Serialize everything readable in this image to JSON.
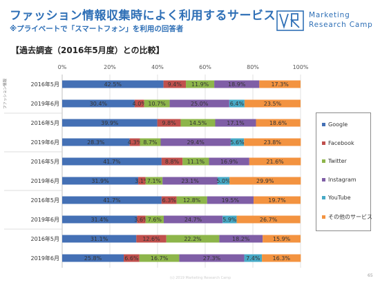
{
  "header": {
    "title": "ファッション情報収集時によく利用するサービス",
    "subtitle": "※プライベートで「スマートフォン」を利用の回答者"
  },
  "brand": {
    "line1": "Marketing",
    "line2": "Research Camp",
    "logo_text": "VR"
  },
  "section_title": "【過去調査（2016年5月度）との比較】",
  "footer": {
    "copyright": "(c) 2019 Marketing Research Camp",
    "page_number": "65"
  },
  "colors": {
    "Google": "#4470b5",
    "Facebook": "#c0504d",
    "Twitter": "#8db54a",
    "Instagram": "#7f5ea6",
    "YouTube": "#46a9c6",
    "その他のサービス": "#f39340"
  },
  "chart_data": {
    "type": "bar",
    "orientation": "horizontal",
    "stacked": "percent",
    "xlim": [
      0,
      100
    ],
    "x_ticks": [
      "0%",
      "20%",
      "40%",
      "60%",
      "80%",
      "100%"
    ],
    "grid": true,
    "legend_position": "right",
    "series_names": [
      "Google",
      "Facebook",
      "Twitter",
      "Instagram",
      "YouTube",
      "その他のサービス"
    ],
    "groups": [
      {
        "label": "ファッション情報",
        "rows": [
          0,
          1
        ]
      },
      {
        "label": "",
        "rows": [
          2,
          3
        ]
      },
      {
        "label": "",
        "rows": [
          4,
          5
        ]
      },
      {
        "label": "",
        "rows": [
          6,
          7
        ]
      },
      {
        "label": "",
        "rows": [
          8,
          9
        ]
      }
    ],
    "rows": [
      {
        "label": "2016年5月",
        "values": [
          42.5,
          9.4,
          11.9,
          18.9,
          0,
          17.3
        ],
        "labels": [
          "42.5%",
          "9.4%",
          "11.9%",
          "18.9%",
          "",
          "17.3%"
        ]
      },
      {
        "label": "2019年6月",
        "values": [
          30.4,
          4.0,
          10.7,
          25.0,
          6.4,
          23.5
        ],
        "labels": [
          "30.4%",
          "4.0%",
          "10.7%",
          "25.0%",
          "6.4%",
          "23.5%"
        ]
      },
      {
        "label": "2016年5月",
        "values": [
          39.9,
          9.8,
          14.5,
          17.1,
          0,
          18.6
        ],
        "labels": [
          "39.9%",
          "9.8%",
          "14.5%",
          "17.1%",
          "",
          "18.6%"
        ]
      },
      {
        "label": "2019年6月",
        "values": [
          28.3,
          4.3,
          8.7,
          29.4,
          5.6,
          23.8
        ],
        "labels": [
          "28.3%",
          "4.3%",
          "8.7%",
          "29.4%",
          "5.6%",
          "23.8%"
        ]
      },
      {
        "label": "2016年5月",
        "values": [
          41.7,
          8.8,
          11.1,
          16.9,
          0,
          21.6
        ],
        "labels": [
          "41.7%",
          "8.8%",
          "11.1%",
          "16.9%",
          "",
          "21.6%"
        ]
      },
      {
        "label": "2019年6月",
        "values": [
          31.9,
          3.1,
          7.1,
          23.1,
          5.0,
          29.9
        ],
        "labels": [
          "31.9%",
          "3.1%",
          "7.1%",
          "23.1%",
          "5.0%",
          "29.9%"
        ]
      },
      {
        "label": "2016年5月",
        "values": [
          41.7,
          6.3,
          12.8,
          19.5,
          0,
          19.7
        ],
        "labels": [
          "41.7%",
          "6.3%",
          "12.8%",
          "19.5%",
          "",
          "19.7%"
        ]
      },
      {
        "label": "2019年6月",
        "values": [
          31.4,
          3.6,
          7.6,
          24.7,
          5.9,
          26.7
        ],
        "labels": [
          "31.4%",
          "3.6%",
          "7.6%",
          "24.7%",
          "5.9%",
          "26.7%"
        ]
      },
      {
        "label": "2016年5月",
        "values": [
          31.1,
          12.6,
          22.2,
          18.2,
          0,
          15.9
        ],
        "labels": [
          "31.1%",
          "12.6%",
          "22.2%",
          "18.2%",
          "",
          "15.9%"
        ]
      },
      {
        "label": "2019年6月",
        "values": [
          25.8,
          6.6,
          16.7,
          27.3,
          7.4,
          16.3
        ],
        "labels": [
          "25.8%",
          "6.6%",
          "16.7%",
          "27.3%",
          "7.4%",
          "16.3%"
        ]
      }
    ]
  }
}
